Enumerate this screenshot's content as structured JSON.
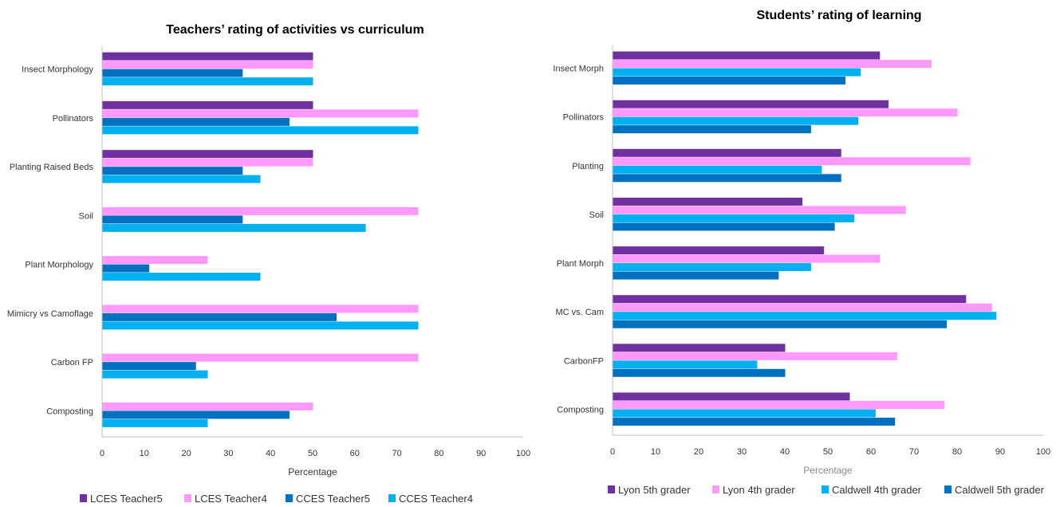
{
  "chart_data": [
    {
      "type": "bar",
      "orientation": "horizontal",
      "title": "Teachers’ rating of activities vs curriculum",
      "xlabel": "Percentage",
      "ylabel": "",
      "xlim": [
        0,
        100
      ],
      "ticks": [
        "0",
        "10",
        "20",
        "30",
        "40",
        "50",
        "60",
        "70",
        "80",
        "90",
        "100"
      ],
      "legend_position": "bottom",
      "categories": [
        "Insect Morphology",
        "Pollinators",
        "Planting Raised Beds",
        "Soil",
        "Plant Morphology",
        "Mimicry vs Camoflage",
        "Carbon FP",
        "Composting"
      ],
      "series": [
        {
          "name": "LCES Teacher5",
          "color": "#7030a0",
          "values": [
            50,
            50,
            50,
            0,
            0,
            0,
            0,
            0
          ]
        },
        {
          "name": "LCES Teacher4",
          "color": "#ff99ff",
          "values": [
            50,
            75,
            50,
            75,
            25,
            75,
            75,
            50
          ]
        },
        {
          "name": "CCES Teacher5",
          "color": "#0070c0",
          "values": [
            33.3,
            44.4,
            33.3,
            33.3,
            11.1,
            55.6,
            22.2,
            44.4
          ]
        },
        {
          "name": "CCES Teacher4",
          "color": "#00b0f0",
          "values": [
            50,
            75,
            37.5,
            62.5,
            37.5,
            75,
            25,
            25
          ]
        }
      ]
    },
    {
      "type": "bar",
      "orientation": "horizontal",
      "title": "Students’ rating of learning",
      "xlabel": "Percentage",
      "ylabel": "",
      "xlim": [
        0,
        100
      ],
      "ticks": [
        "0",
        "10",
        "20",
        "30",
        "40",
        "50",
        "60",
        "70",
        "80",
        "90",
        "100"
      ],
      "legend_position": "bottom",
      "categories": [
        "Insect Morph",
        "Pollinators",
        "Planting",
        "Soil",
        "Plant Morph",
        "MC vs. Cam",
        "CarbonFP",
        "Composting"
      ],
      "series": [
        {
          "name": "Lyon 5th grader",
          "color": "#7030a0",
          "values": [
            62,
            64,
            53,
            44,
            49,
            82,
            40,
            55
          ]
        },
        {
          "name": "Lyon 4th grader",
          "color": "#ff99ff",
          "values": [
            74,
            80,
            83,
            68,
            62,
            88,
            66,
            77
          ]
        },
        {
          "name": "Caldwell 4th grader",
          "color": "#00b0f0",
          "values": [
            57.5,
            57,
            48.5,
            56,
            46,
            89,
            33.5,
            61
          ]
        },
        {
          "name": "Caldwell 5th grader",
          "color": "#0070c0",
          "values": [
            54,
            46,
            53,
            51.5,
            38.5,
            77.5,
            40,
            65.5
          ]
        }
      ]
    }
  ]
}
